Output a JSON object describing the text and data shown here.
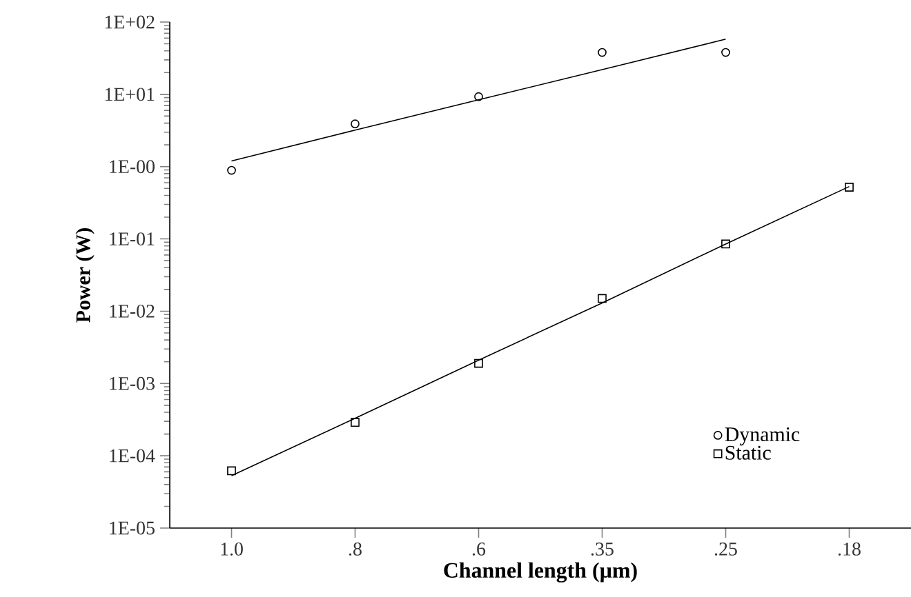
{
  "chart_data": {
    "type": "scatter",
    "xlabel": "Channel length (µm)",
    "ylabel": "Power (W)",
    "categories": [
      "1.0",
      ".8",
      ".6",
      ".35",
      ".25",
      ".18"
    ],
    "log": "y",
    "ylim": [
      1e-05,
      100
    ],
    "yticks": [
      {
        "value": 1e-05,
        "label": "1E-05"
      },
      {
        "value": 0.0001,
        "label": "1E-04"
      },
      {
        "value": 0.001,
        "label": "1E-03"
      },
      {
        "value": 0.01,
        "label": "1E-02"
      },
      {
        "value": 0.1,
        "label": "1E-01"
      },
      {
        "value": 1,
        "label": "1E-00"
      },
      {
        "value": 10,
        "label": "1E+01"
      },
      {
        "value": 100,
        "label": "1E+02"
      }
    ],
    "legend": "bottom right",
    "grid": false,
    "series": [
      {
        "name": "Dynamic",
        "color": "#000000",
        "marker": "circle",
        "values": [
          0.89,
          3.9,
          9.3,
          38,
          38,
          null
        ]
      },
      {
        "name": "Static",
        "color": "#000000",
        "marker": "square",
        "values": [
          6.2e-05,
          0.00029,
          0.0019,
          0.015,
          0.085,
          0.52
        ]
      },
      {
        "type": "line",
        "color": "#000000",
        "marker": "none",
        "values": [
          1.2,
          3.2,
          8.4,
          22,
          58,
          null
        ]
      },
      {
        "type": "line",
        "color": "#000000",
        "marker": "none",
        "values": [
          5.3e-05,
          0.00033,
          0.0021,
          0.013,
          0.085,
          0.53
        ]
      }
    ]
  }
}
